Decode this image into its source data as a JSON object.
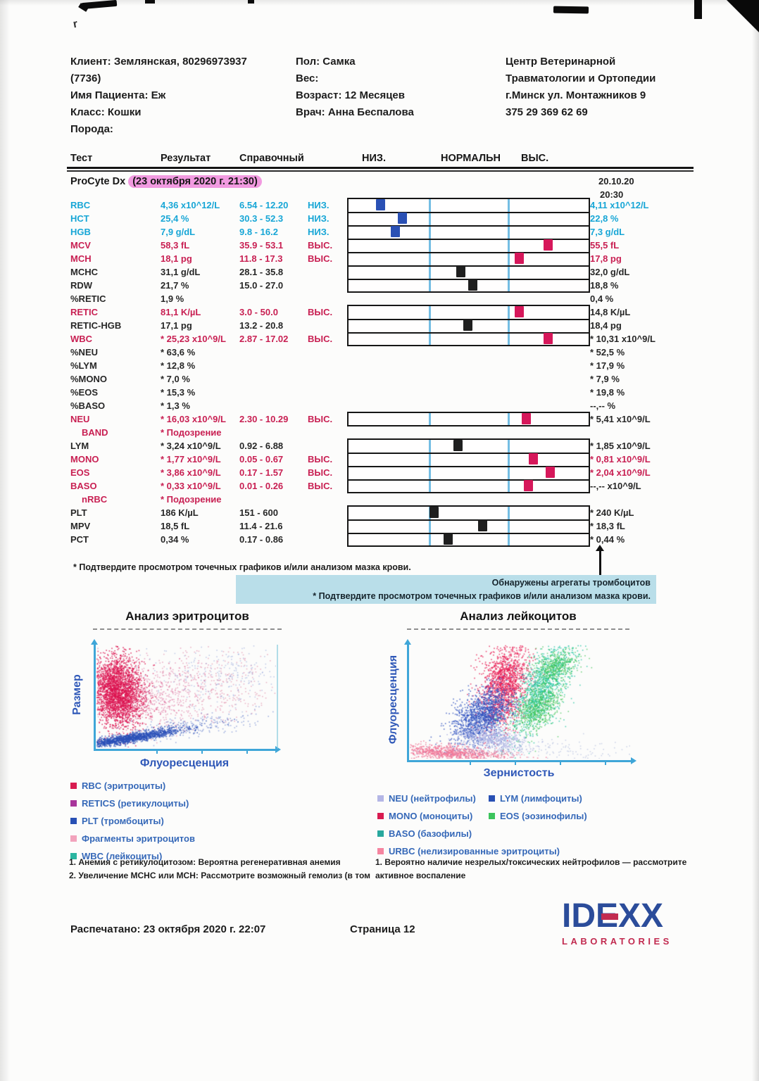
{
  "header": {
    "client_lines": [
      "Клиент: Землянская, 80296973937",
      "(7736)",
      "Имя Пациента: Еж",
      "Класс: Кошки",
      "Порода:"
    ],
    "info_lines": [
      "Пол: Самка",
      "Вес:",
      "Возраст: 12 Месяцев",
      "Врач: Анна Беспалова"
    ],
    "clinic_lines": [
      "Центр Ветеринарной",
      "Травматологии и Ортопедии",
      "г.Минск ул. Монтажников 9",
      "375 29 369 62 69"
    ]
  },
  "table": {
    "columns": [
      "Тест",
      "Результат",
      "Справочный",
      "НИЗ.",
      "НОРМАЛЬН",
      "ВЫС."
    ],
    "device": "ProCyte Dx",
    "device_time_highlight": "(23 октября 2020 г. 21:30)",
    "run_date": [
      "20.10.20",
      "20:30"
    ],
    "rows": [
      {
        "name": "RBC",
        "result": "4,36 x10^12/L",
        "ref": "6.54 - 12.20",
        "flag": "НИЗ.",
        "color": "cyan",
        "prev": "4,11 x10^12/L",
        "prev_color": "cyan",
        "bar": {
          "group": 0,
          "pos": 0.13,
          "color": "blue"
        }
      },
      {
        "name": "HCT",
        "result": "25,4 %",
        "ref": "30.3 - 52.3",
        "flag": "НИЗ.",
        "color": "cyan",
        "prev": "22,8 %",
        "prev_color": "cyan",
        "bar": {
          "group": 0,
          "pos": 0.22,
          "color": "blue"
        }
      },
      {
        "name": "HGB",
        "result": "7,9 g/dL",
        "ref": "9.8 - 16.2",
        "flag": "НИЗ.",
        "color": "cyan",
        "prev": "7,3 g/dL",
        "prev_color": "cyan",
        "bar": {
          "group": 0,
          "pos": 0.19,
          "color": "blue"
        }
      },
      {
        "name": "MCV",
        "result": "58,3 fL",
        "ref": "35.9 - 53.1",
        "flag": "ВЫС.",
        "color": "red",
        "prev": "55,5 fL",
        "prev_color": "red",
        "bar": {
          "group": 0,
          "pos": 0.82,
          "color": "red"
        }
      },
      {
        "name": "MCH",
        "result": "18,1 pg",
        "ref": "11.8 - 17.3",
        "flag": "ВЫС.",
        "color": "red",
        "prev": "17,8 pg",
        "prev_color": "red",
        "bar": {
          "group": 0,
          "pos": 0.7,
          "color": "red"
        }
      },
      {
        "name": "MCHC",
        "result": "31,1 g/dL",
        "ref": "28.1 - 35.8",
        "flag": "",
        "color": "black",
        "prev": "32,0 g/dL",
        "prev_color": "black",
        "bar": {
          "group": 0,
          "pos": 0.46,
          "color": "black"
        }
      },
      {
        "name": "RDW",
        "result": "21,7 %",
        "ref": "15.0 - 27.0",
        "flag": "",
        "color": "black",
        "prev": "18,8 %",
        "prev_color": "black",
        "bar": {
          "group": 0,
          "pos": 0.51,
          "color": "black"
        }
      },
      {
        "name": "%RETIC",
        "result": "1,9 %",
        "ref": "",
        "flag": "",
        "color": "black",
        "prev": "0,4 %",
        "prev_color": "black",
        "bar": null
      },
      {
        "name": "RETIC",
        "result": "81,1 K/µL",
        "ref": "3.0 - 50.0",
        "flag": "ВЫС.",
        "color": "red",
        "prev": "14,8 K/µL",
        "prev_color": "black",
        "bar": {
          "group": 1,
          "pos": 0.7,
          "color": "red"
        }
      },
      {
        "name": "RETIC-HGB",
        "result": "17,1 pg",
        "ref": "13.2 - 20.8",
        "flag": "",
        "color": "black",
        "prev": "18,4 pg",
        "prev_color": "black",
        "bar": {
          "group": 1,
          "pos": 0.49,
          "color": "black"
        }
      },
      {
        "name": "WBC",
        "result": "* 25,23 x10^9/L",
        "ref": "2.87 - 17.02",
        "flag": "ВЫС.",
        "color": "red",
        "prev": "* 10,31 x10^9/L",
        "prev_color": "black",
        "bar": {
          "group": 1,
          "pos": 0.82,
          "color": "red"
        }
      },
      {
        "name": "%NEU",
        "result": "* 63,6 %",
        "ref": "",
        "flag": "",
        "color": "black",
        "prev": "* 52,5 %",
        "prev_color": "black",
        "bar": null
      },
      {
        "name": "%LYM",
        "result": "* 12,8 %",
        "ref": "",
        "flag": "",
        "color": "black",
        "prev": "* 17,9 %",
        "prev_color": "black",
        "bar": null
      },
      {
        "name": "%MONO",
        "result": "* 7,0 %",
        "ref": "",
        "flag": "",
        "color": "black",
        "prev": "* 7,9 %",
        "prev_color": "black",
        "bar": null
      },
      {
        "name": "%EOS",
        "result": "* 15,3 %",
        "ref": "",
        "flag": "",
        "color": "black",
        "prev": "* 19,8 %",
        "prev_color": "black",
        "bar": null
      },
      {
        "name": "%BASO",
        "result": "* 1,3 %",
        "ref": "",
        "flag": "",
        "color": "black",
        "prev": "--,--  %",
        "prev_color": "black",
        "bar": null
      },
      {
        "name": "NEU",
        "result": "* 16,03 x10^9/L",
        "ref": "2.30 - 10.29",
        "flag": "ВЫС.",
        "color": "red",
        "prev": "* 5,41 x10^9/L",
        "prev_color": "black",
        "bar": {
          "group": 2,
          "pos": 0.73,
          "color": "red"
        }
      },
      {
        "name": "BAND",
        "indent": true,
        "result": "* Подозрение",
        "ref": "",
        "flag": "",
        "color": "red",
        "prev": "",
        "prev_color": "black",
        "bar": null
      },
      {
        "name": "LYM",
        "result": "* 3,24 x10^9/L",
        "ref": "0.92 - 6.88",
        "flag": "",
        "color": "black",
        "prev": "* 1,85 x10^9/L",
        "prev_color": "black",
        "bar": {
          "group": 3,
          "pos": 0.45,
          "color": "black"
        }
      },
      {
        "name": "MONO",
        "result": "* 1,77 x10^9/L",
        "ref": "0.05 - 0.67",
        "flag": "ВЫС.",
        "color": "red",
        "prev": "* 0,81 x10^9/L",
        "prev_color": "red",
        "bar": {
          "group": 3,
          "pos": 0.76,
          "color": "red"
        }
      },
      {
        "name": "EOS",
        "result": "* 3,86 x10^9/L",
        "ref": "0.17 - 1.57",
        "flag": "ВЫС.",
        "color": "red",
        "prev": "* 2,04 x10^9/L",
        "prev_color": "red",
        "bar": {
          "group": 3,
          "pos": 0.83,
          "color": "red"
        }
      },
      {
        "name": "BASO",
        "result": "* 0,33 x10^9/L",
        "ref": "0.01 - 0.26",
        "flag": "ВЫС.",
        "color": "red",
        "prev": "--,--  x10^9/L",
        "prev_color": "black",
        "bar": {
          "group": 3,
          "pos": 0.74,
          "color": "red"
        }
      },
      {
        "name": "nRBC",
        "indent": true,
        "result": "* Подозрение",
        "ref": "",
        "flag": "",
        "color": "red",
        "prev": "",
        "prev_color": "black",
        "bar": null
      },
      {
        "name": "PLT",
        "result": "186 K/µL",
        "ref": "151 - 600",
        "flag": "",
        "color": "black",
        "prev": "* 240 K/µL",
        "prev_color": "black",
        "bar": {
          "group": 4,
          "pos": 0.35,
          "color": "black"
        }
      },
      {
        "name": "MPV",
        "result": "18,5 fL",
        "ref": "11.4 - 21.6",
        "flag": "",
        "color": "black",
        "prev": "* 18,3 fL",
        "prev_color": "black",
        "bar": {
          "group": 4,
          "pos": 0.55,
          "color": "black"
        }
      },
      {
        "name": "PCT",
        "result": "0,34 %",
        "ref": "0.17 - 0.86",
        "flag": "",
        "color": "black",
        "prev": "* 0,44 %",
        "prev_color": "black",
        "bar": {
          "group": 4,
          "pos": 0.41,
          "color": "black"
        }
      }
    ]
  },
  "footnote": "* Подтвердите просмотром точечных графиков и/или анализом мазка крови.",
  "alert_box": {
    "bg": "#b9dee9",
    "lines": [
      "Обнаружены агрегаты тромбоцитов",
      "* Подтвердите просмотром точечных графиков и/или анализом мазка крови."
    ]
  },
  "chart_data": [
    {
      "type": "scatter",
      "title": "Анализ эритроцитов",
      "xlabel": "Флуоресценция",
      "ylabel": "Размер",
      "legend": [
        {
          "label": "RBC (эритроциты)",
          "color": "#d81b50"
        },
        {
          "label": "RETICS (ретикулоциты)",
          "color": "#a8359b"
        },
        {
          "label": "PLT (тромбоциты)",
          "color": "#2850b4"
        },
        {
          "label": "Фрагменты эритроцитов",
          "color": "#f2a3bc"
        },
        {
          "label": "WBC (лейкоциты)",
          "color": "#2ab5a0"
        }
      ],
      "clusters": [
        {
          "name": "rbc-dense",
          "color": "#dc1450",
          "count": 2800,
          "cx": 0.12,
          "cy": 0.55,
          "sx": 0.07,
          "sy": 0.17,
          "rot": 4,
          "alpha": 0.8
        },
        {
          "name": "rbc-spread",
          "color": "#d23878",
          "count": 600,
          "cx": 0.33,
          "cy": 0.5,
          "sx": 0.16,
          "sy": 0.16,
          "rot": 0,
          "alpha": 0.4
        },
        {
          "name": "retic-sparse",
          "color": "#cc3366",
          "count": 320,
          "cx": 0.68,
          "cy": 0.62,
          "sx": 0.2,
          "sy": 0.2,
          "rot": 0,
          "alpha": 0.35
        },
        {
          "name": "blue-sparse-high",
          "color": "#4060c0",
          "count": 260,
          "cx": 0.72,
          "cy": 0.72,
          "sx": 0.2,
          "sy": 0.18,
          "rot": 0,
          "alpha": 0.3
        },
        {
          "name": "plt-band",
          "color": "#2b50b8",
          "count": 1500,
          "cx": 0.17,
          "cy": 0.09,
          "sx": 0.16,
          "sy": 0.022,
          "rot": 16,
          "alpha": 0.8
        },
        {
          "name": "plt-tail",
          "color": "#3a5ac0",
          "count": 300,
          "cx": 0.5,
          "cy": 0.2,
          "sx": 0.2,
          "sy": 0.05,
          "rot": 14,
          "alpha": 0.45
        }
      ]
    },
    {
      "type": "scatter",
      "title": "Анализ лейкоцитов",
      "xlabel": "Зернистость",
      "ylabel": "Флуоресценция",
      "legend": [
        {
          "label": "NEU (нейтрофилы)",
          "color": "#b4b6e6"
        },
        {
          "label": "LYM (лимфоциты)",
          "color": "#2850b4"
        },
        {
          "label": "MONO (моноциты)",
          "color": "#d81b50"
        },
        {
          "label": "EOS (эозинофилы)",
          "color": "#3cc45c"
        },
        {
          "label": "BASO (базофилы)",
          "color": "#28a89e"
        },
        {
          "label": "URBC (нелизированные эритроциты)",
          "color": "#f585a0"
        }
      ],
      "clusters": [
        {
          "name": "mono-neu",
          "color": "#e81e55",
          "count": 1600,
          "cx": 0.43,
          "cy": 0.66,
          "sx": 0.05,
          "sy": 0.19,
          "rot": -6,
          "alpha": 0.8
        },
        {
          "name": "lym",
          "color": "#3355c0",
          "count": 1400,
          "cx": 0.33,
          "cy": 0.38,
          "sx": 0.055,
          "sy": 0.13,
          "rot": -18,
          "alpha": 0.8
        },
        {
          "name": "eos-teal",
          "color": "#2cc8a8",
          "count": 1200,
          "cx": 0.6,
          "cy": 0.62,
          "sx": 0.05,
          "sy": 0.22,
          "rot": -14,
          "alpha": 0.8
        },
        {
          "name": "eos-green-mid",
          "color": "#40c455",
          "count": 600,
          "cx": 0.58,
          "cy": 0.45,
          "sx": 0.045,
          "sy": 0.12,
          "rot": -14,
          "alpha": 0.7
        },
        {
          "name": "eos-green-top",
          "color": "#40c455",
          "count": 400,
          "cx": 0.66,
          "cy": 0.82,
          "sx": 0.05,
          "sy": 0.08,
          "rot": -14,
          "alpha": 0.7
        },
        {
          "name": "neu-lavender",
          "color": "#aab0e2",
          "count": 550,
          "cx": 0.38,
          "cy": 0.18,
          "sx": 0.075,
          "sy": 0.05,
          "rot": -25,
          "alpha": 0.8
        },
        {
          "name": "urbc-pink",
          "color": "#f07898",
          "count": 1000,
          "cx": 0.18,
          "cy": 0.055,
          "sx": 0.14,
          "sy": 0.03,
          "rot": -7,
          "alpha": 0.8
        },
        {
          "name": "misc-bottom",
          "color": "#8898cc",
          "count": 250,
          "cx": 0.5,
          "cy": 0.08,
          "sx": 0.3,
          "sy": 0.05,
          "rot": 0,
          "alpha": 0.4
        }
      ]
    }
  ],
  "notes": {
    "left": [
      "1. Анемия с ретикулоцитозом: Вероятна регенеративная анемия",
      "2. Увеличение MCHC или MCH: Рассмотрите возможный гемолиз (в том"
    ],
    "right": [
      "1. Вероятно наличие незрелых/токсических нейтрофилов — рассмотрите",
      "активное воспаление"
    ]
  },
  "footer": {
    "printed": "Распечатано: 23 октября 2020 г. 22:07",
    "page_label": "Страница 12",
    "logo_text": "IDEXX",
    "logo_sub": "LABORATORIES"
  },
  "colors": {
    "low_flag": "#17a6d6",
    "high_flag": "#c81f52",
    "highlight_pink": "#f19ae0",
    "alert_bg": "#b9dee9",
    "marker_blue": "#2a50b4",
    "marker_red": "#d6175a",
    "axis_blue": "#3fa6d8",
    "label_blue": "#2f58b8",
    "logo_blue": "#2b4c9a",
    "logo_red": "#c22b50"
  }
}
